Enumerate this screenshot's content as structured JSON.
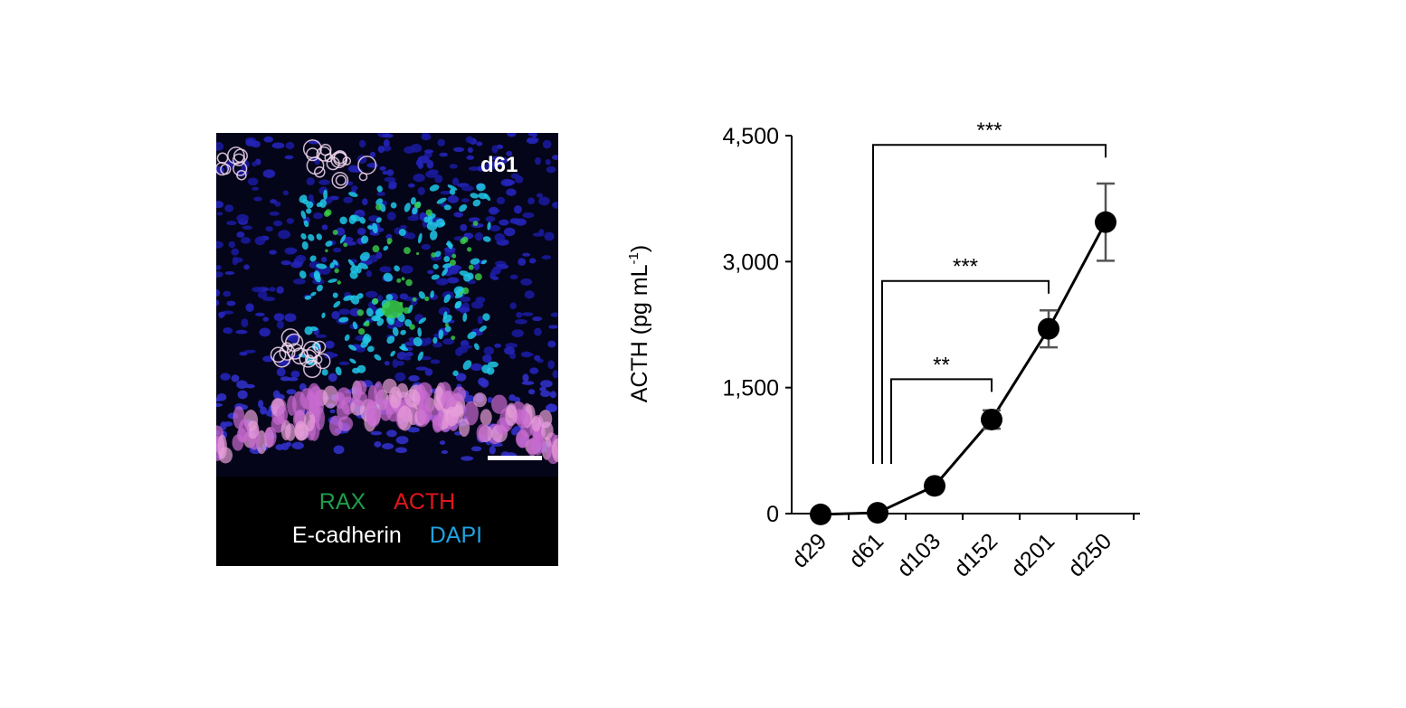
{
  "figure": {
    "image_panel": {
      "day_label": "d61",
      "stains": [
        {
          "name": "RAX",
          "color": "#1f9e4a"
        },
        {
          "name": "ACTH",
          "color": "#e0161b"
        },
        {
          "name": "E-cadherin",
          "color": "#ffffff"
        },
        {
          "name": "DAPI",
          "color": "#1fa3e0"
        }
      ]
    }
  },
  "chart_data": {
    "type": "line",
    "categories": [
      "d29",
      "d61",
      "d103",
      "d152",
      "d201",
      "d250"
    ],
    "series": [
      {
        "values": [
          -10,
          10,
          330,
          1120,
          2200,
          3470
        ],
        "error": [
          0,
          0,
          0,
          110,
          220,
          460
        ]
      }
    ],
    "ylabel": "ACTH (pg mL",
    "ylabel_sup": "-1",
    "ylabel_close": ")",
    "ylim": [
      0,
      4500
    ],
    "yticks": [
      0,
      1500,
      3000,
      4500
    ],
    "ytick_labels": [
      "0",
      "1,500",
      "3,000",
      "4,500"
    ],
    "significance": [
      {
        "from": "d61",
        "to": "d152",
        "label": "**",
        "bracket_y": 1600
      },
      {
        "from": "d61",
        "to": "d201",
        "label": "***",
        "bracket_y": 2770
      },
      {
        "from": "d61",
        "to": "d250",
        "label": "***",
        "bracket_y": 4390
      }
    ],
    "colors": {
      "line": "#000000",
      "error": "#555555"
    },
    "grid": false
  }
}
